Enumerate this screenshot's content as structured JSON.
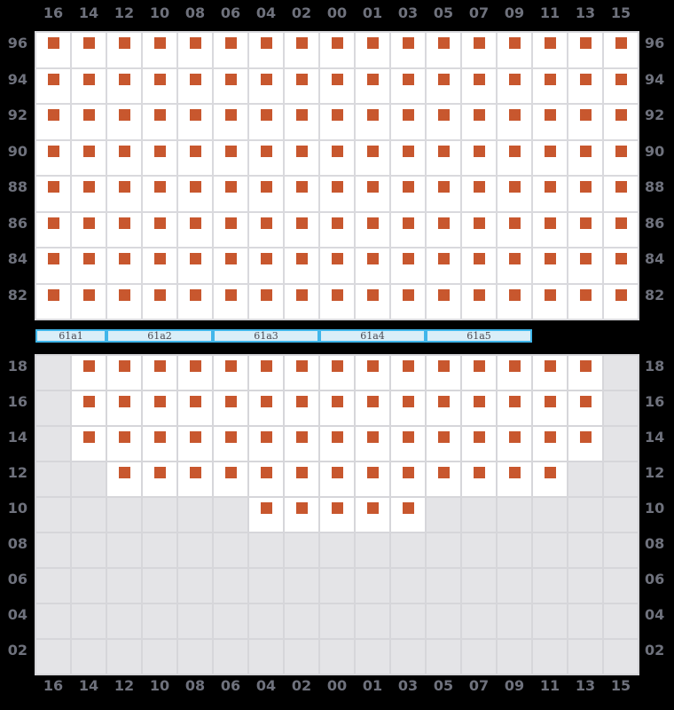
{
  "columns": [
    "16",
    "14",
    "12",
    "10",
    "08",
    "06",
    "04",
    "02",
    "00",
    "01",
    "03",
    "05",
    "07",
    "09",
    "11",
    "13",
    "15"
  ],
  "upper_deck": {
    "rows": [
      {
        "tier": "96",
        "slots": [
          0,
          16
        ]
      },
      {
        "tier": "94",
        "slots": [
          0,
          16
        ]
      },
      {
        "tier": "92",
        "slots": [
          0,
          16
        ]
      },
      {
        "tier": "90",
        "slots": [
          0,
          16
        ]
      },
      {
        "tier": "88",
        "slots": [
          0,
          16
        ]
      },
      {
        "tier": "86",
        "slots": [
          0,
          16
        ]
      },
      {
        "tier": "84",
        "slots": [
          0,
          16
        ]
      },
      {
        "tier": "82",
        "slots": [
          0,
          16
        ]
      }
    ]
  },
  "hatch_covers": [
    {
      "label": "61a1",
      "col_span": 2
    },
    {
      "label": "61a2",
      "col_span": 3
    },
    {
      "label": "61a3",
      "col_span": 3
    },
    {
      "label": "61a4",
      "col_span": 3
    },
    {
      "label": "61a5",
      "col_span": 3
    }
  ],
  "lower_hold": {
    "rows": [
      {
        "tier": "18",
        "slots": [
          1,
          15
        ]
      },
      {
        "tier": "16",
        "slots": [
          1,
          15
        ]
      },
      {
        "tier": "14",
        "slots": [
          1,
          15
        ]
      },
      {
        "tier": "12",
        "slots": [
          2,
          14
        ]
      },
      {
        "tier": "10",
        "slots": [
          6,
          10
        ]
      },
      {
        "tier": "08",
        "slots": null
      },
      {
        "tier": "06",
        "slots": null
      },
      {
        "tier": "04",
        "slots": null
      },
      {
        "tier": "02",
        "slots": null
      }
    ]
  },
  "colors": {
    "page_background": "#000000",
    "slot_fill": "#ffffff",
    "empty_fill": "#e4e4e7",
    "grid_line_upper": "#d9d9dd",
    "grid_line_lower": "#d6d6da",
    "container_marker": "#c8572e",
    "hatch_border": "#41b6ea",
    "hatch_fill": "#d9eef8",
    "axis_label": "#6e717c",
    "hatch_label": "#4a4a52"
  }
}
